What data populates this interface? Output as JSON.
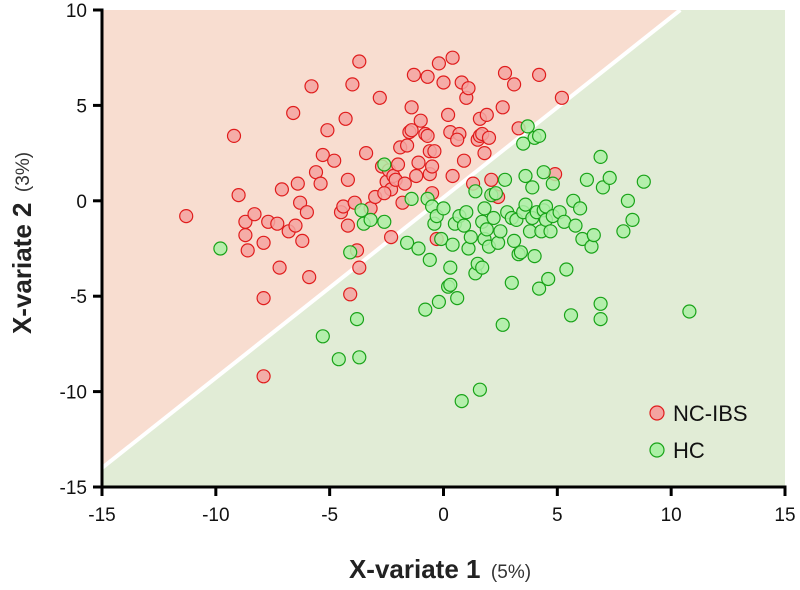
{
  "chart_data": {
    "type": "scatter",
    "title": "",
    "xlabel": "X-variate 1",
    "xlabel_pct": "(5%)",
    "ylabel": "X-variate 2",
    "ylabel_pct": "(3%)",
    "xlim": [
      -15,
      15
    ],
    "ylim": [
      -15,
      10
    ],
    "xticks": [
      -15,
      -10,
      -5,
      0,
      5,
      10,
      15
    ],
    "yticks": [
      -15,
      -10,
      -5,
      0,
      5,
      10
    ],
    "xtick_labels": [
      "-15",
      "-10",
      "-5",
      "0",
      "5",
      "10",
      "15"
    ],
    "ytick_labels": [
      "-15",
      "-10",
      "-5",
      "0",
      "5",
      "10"
    ],
    "grid": false,
    "legend_position": "bottom-right",
    "decision_boundary": {
      "x": [
        -15,
        10.4
      ],
      "y": [
        -14,
        10
      ]
    },
    "regions": [
      {
        "name": "NC-IBS region",
        "color": "#f8ddd0",
        "side": "upper-left"
      },
      {
        "name": "HC region",
        "color": "#e1ecd6",
        "side": "lower-right"
      }
    ],
    "series": [
      {
        "name": "NC-IBS",
        "fill": "#f4a3a0",
        "stroke": "#e01c1c",
        "points": [
          [
            -11.3,
            -0.8
          ],
          [
            -9.2,
            3.4
          ],
          [
            -9.0,
            0.3
          ],
          [
            -8.7,
            -1.1
          ],
          [
            -8.7,
            -1.8
          ],
          [
            -8.6,
            -2.6
          ],
          [
            -8.3,
            -0.7
          ],
          [
            -7.9,
            -5.1
          ],
          [
            -7.9,
            -9.2
          ],
          [
            -7.9,
            -2.2
          ],
          [
            -7.7,
            -1.1
          ],
          [
            -7.3,
            -1.2
          ],
          [
            -7.2,
            -3.5
          ],
          [
            -7.1,
            0.6
          ],
          [
            -6.8,
            -1.6
          ],
          [
            -6.6,
            4.6
          ],
          [
            -6.5,
            -1.3
          ],
          [
            -6.4,
            0.9
          ],
          [
            -6.3,
            -0.1
          ],
          [
            -6.2,
            -2.1
          ],
          [
            -6.0,
            -0.6
          ],
          [
            -5.9,
            -4.0
          ],
          [
            -5.8,
            6.0
          ],
          [
            -5.6,
            1.5
          ],
          [
            -5.4,
            0.9
          ],
          [
            -5.3,
            2.4
          ],
          [
            -5.1,
            3.7
          ],
          [
            -4.8,
            2.1
          ],
          [
            -4.5,
            -0.6
          ],
          [
            -4.4,
            -0.3
          ],
          [
            -4.3,
            4.3
          ],
          [
            -4.2,
            1.1
          ],
          [
            -4.2,
            -1.3
          ],
          [
            -4.1,
            -4.9
          ],
          [
            -4.0,
            6.1
          ],
          [
            -3.9,
            -0.1
          ],
          [
            -3.8,
            -2.6
          ],
          [
            -3.7,
            7.3
          ],
          [
            -3.7,
            -3.5
          ],
          [
            -3.4,
            2.5
          ],
          [
            -3.2,
            -0.4
          ],
          [
            -3.0,
            0.2
          ],
          [
            -2.8,
            5.4
          ],
          [
            -2.7,
            1.8
          ],
          [
            -2.5,
            1.0
          ],
          [
            -2.4,
            1.6
          ],
          [
            -2.3,
            0.6
          ],
          [
            -2.3,
            -1.9
          ],
          [
            -2.2,
            1.3
          ],
          [
            -2.1,
            1.1
          ],
          [
            -2.0,
            1.9
          ],
          [
            -1.9,
            2.8
          ],
          [
            -1.8,
            -0.1
          ],
          [
            -1.7,
            0.9
          ],
          [
            -1.6,
            2.9
          ],
          [
            -1.5,
            3.6
          ],
          [
            -1.4,
            4.9
          ],
          [
            -1.4,
            3.7
          ],
          [
            -1.3,
            6.6
          ],
          [
            -1.2,
            1.3
          ],
          [
            -1.1,
            2.0
          ],
          [
            -1.0,
            4.2
          ],
          [
            -0.8,
            3.5
          ],
          [
            -0.7,
            3.4
          ],
          [
            -0.7,
            6.5
          ],
          [
            -0.6,
            2.6
          ],
          [
            -0.6,
            1.4
          ],
          [
            -0.5,
            0.4
          ],
          [
            -0.5,
            1.8
          ],
          [
            -0.4,
            2.6
          ],
          [
            -0.3,
            -2.0
          ],
          [
            -0.2,
            7.2
          ],
          [
            0.0,
            6.2
          ],
          [
            0.2,
            4.5
          ],
          [
            0.3,
            3.6
          ],
          [
            0.4,
            1.3
          ],
          [
            0.4,
            7.5
          ],
          [
            0.7,
            3.5
          ],
          [
            0.8,
            6.2
          ],
          [
            0.9,
            2.1
          ],
          [
            1.0,
            5.4
          ],
          [
            1.1,
            5.9
          ],
          [
            1.3,
            0.9
          ],
          [
            1.5,
            3.2
          ],
          [
            1.6,
            3.4
          ],
          [
            1.6,
            4.3
          ],
          [
            1.7,
            3.5
          ],
          [
            1.8,
            2.5
          ],
          [
            1.9,
            4.5
          ],
          [
            2.0,
            3.3
          ],
          [
            2.1,
            1.1
          ],
          [
            2.2,
            0.3
          ],
          [
            2.4,
            0.2
          ],
          [
            2.6,
            4.9
          ],
          [
            2.7,
            6.7
          ],
          [
            3.1,
            6.1
          ],
          [
            3.3,
            3.8
          ],
          [
            4.2,
            6.6
          ],
          [
            4.9,
            1.4
          ],
          [
            5.2,
            5.4
          ],
          [
            0.6,
            3.2
          ],
          [
            -2.6,
            0.4
          ]
        ]
      },
      {
        "name": "HC",
        "fill": "#abf0a5",
        "stroke": "#18a318",
        "points": [
          [
            -9.8,
            -2.5
          ],
          [
            -5.3,
            -7.1
          ],
          [
            -4.6,
            -8.3
          ],
          [
            -4.1,
            -2.7
          ],
          [
            -3.8,
            -6.2
          ],
          [
            -3.7,
            -8.2
          ],
          [
            -3.6,
            -0.5
          ],
          [
            -3.5,
            -1.2
          ],
          [
            -2.6,
            1.9
          ],
          [
            -2.6,
            -1.1
          ],
          [
            -1.6,
            -2.2
          ],
          [
            -1.4,
            0.1
          ],
          [
            -1.1,
            -2.5
          ],
          [
            -0.8,
            -5.7
          ],
          [
            -0.7,
            0.1
          ],
          [
            -0.6,
            -3.1
          ],
          [
            -0.5,
            -0.3
          ],
          [
            -0.4,
            -1.2
          ],
          [
            -0.3,
            -0.8
          ],
          [
            -0.2,
            -5.3
          ],
          [
            -0.1,
            -2.0
          ],
          [
            0.0,
            -0.4
          ],
          [
            0.2,
            -4.5
          ],
          [
            0.3,
            -4.4
          ],
          [
            0.3,
            -3.5
          ],
          [
            0.4,
            -2.3
          ],
          [
            0.5,
            -1.2
          ],
          [
            0.6,
            -5.1
          ],
          [
            0.7,
            -0.8
          ],
          [
            0.8,
            -10.5
          ],
          [
            0.9,
            -1.3
          ],
          [
            1.0,
            -0.6
          ],
          [
            1.1,
            -2.5
          ],
          [
            1.2,
            -1.9
          ],
          [
            1.4,
            -3.8
          ],
          [
            1.5,
            -3.3
          ],
          [
            1.6,
            -9.9
          ],
          [
            1.7,
            -3.5
          ],
          [
            1.7,
            -1.1
          ],
          [
            1.8,
            -2.0
          ],
          [
            1.8,
            -0.4
          ],
          [
            1.9,
            -1.5
          ],
          [
            2.0,
            -2.4
          ],
          [
            2.1,
            0.3
          ],
          [
            2.2,
            -0.9
          ],
          [
            2.3,
            0.4
          ],
          [
            2.4,
            -2.2
          ],
          [
            2.5,
            -1.6
          ],
          [
            2.6,
            -6.5
          ],
          [
            2.7,
            1.1
          ],
          [
            2.8,
            -0.6
          ],
          [
            3.0,
            -0.9
          ],
          [
            3.0,
            -4.3
          ],
          [
            3.1,
            -2.1
          ],
          [
            3.2,
            -1.0
          ],
          [
            3.3,
            -2.8
          ],
          [
            3.4,
            -2.7
          ],
          [
            3.5,
            3.0
          ],
          [
            3.5,
            -0.6
          ],
          [
            3.6,
            -0.2
          ],
          [
            3.6,
            1.3
          ],
          [
            3.7,
            3.9
          ],
          [
            3.8,
            -1.6
          ],
          [
            3.9,
            -0.9
          ],
          [
            3.9,
            0.7
          ],
          [
            4.0,
            3.3
          ],
          [
            4.0,
            -2.9
          ],
          [
            4.1,
            -0.6
          ],
          [
            4.2,
            -4.6
          ],
          [
            4.2,
            3.4
          ],
          [
            4.3,
            -1.6
          ],
          [
            4.4,
            1.5
          ],
          [
            4.4,
            -0.5
          ],
          [
            4.5,
            -1.0
          ],
          [
            4.5,
            -0.3
          ],
          [
            4.6,
            -4.1
          ],
          [
            4.7,
            -1.6
          ],
          [
            4.8,
            -0.8
          ],
          [
            4.8,
            0.9
          ],
          [
            5.1,
            -0.6
          ],
          [
            5.3,
            -1.1
          ],
          [
            5.4,
            -3.6
          ],
          [
            5.6,
            -6.0
          ],
          [
            5.7,
            0.0
          ],
          [
            5.8,
            -1.3
          ],
          [
            6.0,
            -0.4
          ],
          [
            6.1,
            -2.0
          ],
          [
            6.3,
            1.1
          ],
          [
            6.5,
            -2.4
          ],
          [
            6.6,
            -1.8
          ],
          [
            6.9,
            2.3
          ],
          [
            6.9,
            -5.4
          ],
          [
            6.9,
            -6.2
          ],
          [
            7.0,
            0.7
          ],
          [
            7.3,
            1.2
          ],
          [
            7.9,
            -1.6
          ],
          [
            8.1,
            0.0
          ],
          [
            8.3,
            -1.0
          ],
          [
            8.8,
            1.0
          ],
          [
            10.8,
            -5.8
          ],
          [
            -3.2,
            -1.0
          ],
          [
            1.4,
            0.5
          ]
        ]
      }
    ]
  }
}
